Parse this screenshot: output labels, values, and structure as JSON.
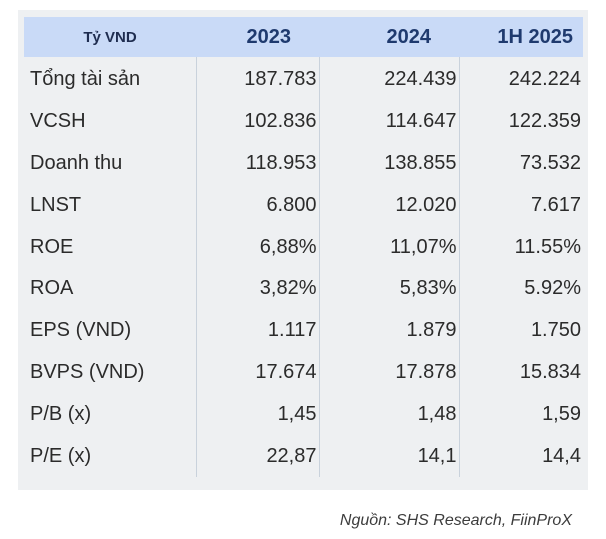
{
  "table": {
    "header": {
      "label": "Tỷ VND",
      "years": [
        "2023",
        "2024",
        "1H 2025"
      ]
    },
    "rows": [
      {
        "label": "Tổng tài sản",
        "values": [
          "187.783",
          "224.439",
          "242.224"
        ]
      },
      {
        "label": "VCSH",
        "values": [
          "102.836",
          "114.647",
          "122.359"
        ]
      },
      {
        "label": "Doanh thu",
        "values": [
          "118.953",
          "138.855",
          "73.532"
        ]
      },
      {
        "label": "LNST",
        "values": [
          "6.800",
          "12.020",
          "7.617"
        ]
      },
      {
        "label": "ROE",
        "values": [
          "6,88%",
          "11,07%",
          "11.55%"
        ]
      },
      {
        "label": "ROA",
        "values": [
          "3,82%",
          "5,83%",
          "5.92%"
        ]
      },
      {
        "label": "EPS (VND)",
        "values": [
          "1.117",
          "1.879",
          "1.750"
        ]
      },
      {
        "label": "BVPS (VND)",
        "values": [
          "17.674",
          "17.878",
          "15.834"
        ]
      },
      {
        "label": "P/B (x)",
        "values": [
          "1,45",
          "1,48",
          "1,59"
        ]
      },
      {
        "label": "P/E (x)",
        "values": [
          "22,87",
          "14,1",
          "14,4"
        ]
      }
    ]
  },
  "source": "Nguồn: SHS Research, FiinProX",
  "colors": {
    "header_bg": "#c9daf7",
    "header_text": "#1f3a6e",
    "panel_bg": "#eef0f2"
  }
}
